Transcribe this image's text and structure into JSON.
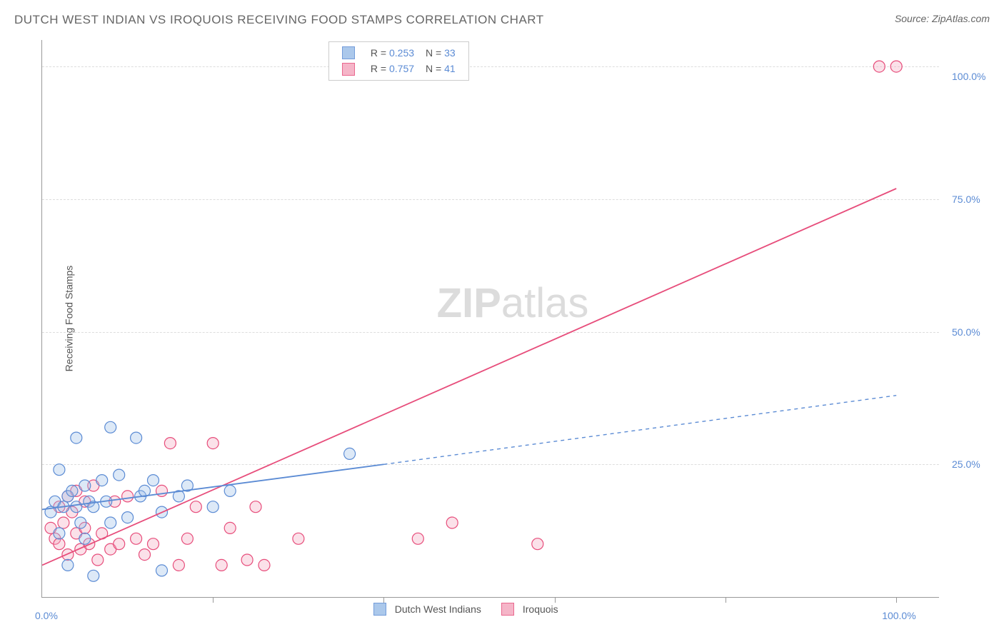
{
  "title": "DUTCH WEST INDIAN VS IROQUOIS RECEIVING FOOD STAMPS CORRELATION CHART",
  "source": "Source: ZipAtlas.com",
  "ylabel": "Receiving Food Stamps",
  "watermark_bold": "ZIP",
  "watermark_rest": "atlas",
  "chart": {
    "type": "scatter_correlation",
    "xlim": [
      0,
      105
    ],
    "ylim": [
      0,
      105
    ],
    "x_ticks": [
      0,
      20,
      40,
      60,
      80,
      100
    ],
    "y_ticks": [
      25,
      50,
      75,
      100
    ],
    "x_tick_labels": {
      "0": "0.0%",
      "100": "100.0%"
    },
    "y_tick_labels": {
      "25": "25.0%",
      "50": "50.0%",
      "75": "75.0%",
      "100": "100.0%"
    },
    "tick_color": "#5b8bd4",
    "grid_h_positions": [
      25,
      50,
      75,
      100
    ],
    "grid_v_positions": [
      20,
      40,
      60,
      80,
      100
    ],
    "grid_color": "#dddddd",
    "background_color": "#ffffff",
    "axis_color": "#999999",
    "marker_radius": 8,
    "marker_stroke_width": 1.2,
    "marker_fill_opacity": 0.35,
    "line_width": 1.8,
    "dash_pattern": "5,5"
  },
  "series": {
    "blue": {
      "label": "Dutch West Indians",
      "color_stroke": "#5b8bd4",
      "color_fill": "#9dbfe8",
      "R": "0.253",
      "N": "33",
      "trend": {
        "x1": 0,
        "y1": 16.5,
        "x2": 40,
        "y2": 25,
        "x2_ext": 100,
        "y2_ext": 38
      },
      "points": [
        [
          1,
          16
        ],
        [
          1.5,
          18
        ],
        [
          2,
          24
        ],
        [
          2,
          12
        ],
        [
          2.5,
          17
        ],
        [
          3,
          19
        ],
        [
          3,
          6
        ],
        [
          3.5,
          20
        ],
        [
          4,
          30
        ],
        [
          4,
          17
        ],
        [
          4.5,
          14
        ],
        [
          5,
          21
        ],
        [
          5,
          11
        ],
        [
          5.5,
          18
        ],
        [
          6,
          17
        ],
        [
          6,
          4
        ],
        [
          7,
          22
        ],
        [
          7.5,
          18
        ],
        [
          8,
          14
        ],
        [
          8,
          32
        ],
        [
          9,
          23
        ],
        [
          10,
          15
        ],
        [
          11,
          30
        ],
        [
          11.5,
          19
        ],
        [
          12,
          20
        ],
        [
          13,
          22
        ],
        [
          14,
          16
        ],
        [
          14,
          5
        ],
        [
          16,
          19
        ],
        [
          17,
          21
        ],
        [
          20,
          17
        ],
        [
          22,
          20
        ],
        [
          36,
          27
        ]
      ]
    },
    "pink": {
      "label": "Iroquois",
      "color_stroke": "#e74d7b",
      "color_fill": "#f4a9bf",
      "R": "0.757",
      "N": "41",
      "trend": {
        "x1": 0,
        "y1": 6,
        "x2": 100,
        "y2": 77
      },
      "points": [
        [
          1,
          13
        ],
        [
          1.5,
          11
        ],
        [
          2,
          10
        ],
        [
          2,
          17
        ],
        [
          2.5,
          14
        ],
        [
          3,
          19
        ],
        [
          3,
          8
        ],
        [
          3.5,
          16
        ],
        [
          4,
          12
        ],
        [
          4,
          20
        ],
        [
          4.5,
          9
        ],
        [
          5,
          18
        ],
        [
          5,
          13
        ],
        [
          5.5,
          10
        ],
        [
          6,
          21
        ],
        [
          6.5,
          7
        ],
        [
          7,
          12
        ],
        [
          8,
          9
        ],
        [
          8.5,
          18
        ],
        [
          9,
          10
        ],
        [
          10,
          19
        ],
        [
          11,
          11
        ],
        [
          12,
          8
        ],
        [
          13,
          10
        ],
        [
          14,
          20
        ],
        [
          15,
          29
        ],
        [
          16,
          6
        ],
        [
          17,
          11
        ],
        [
          18,
          17
        ],
        [
          20,
          29
        ],
        [
          21,
          6
        ],
        [
          22,
          13
        ],
        [
          24,
          7
        ],
        [
          25,
          17
        ],
        [
          26,
          6
        ],
        [
          30,
          11
        ],
        [
          44,
          11
        ],
        [
          48,
          14
        ],
        [
          58,
          10
        ],
        [
          98,
          100
        ],
        [
          100,
          100
        ]
      ]
    }
  },
  "legend_top": {
    "rows": [
      {
        "swatch": "blue",
        "r_val": "0.253",
        "n_val": "33"
      },
      {
        "swatch": "pink",
        "r_val": "0.757",
        "n_val": "41"
      }
    ],
    "r_label": "R =",
    "n_label": "N ="
  },
  "legend_bottom": {
    "items": [
      {
        "swatch": "blue",
        "label": "Dutch West Indians"
      },
      {
        "swatch": "pink",
        "label": "Iroquois"
      }
    ]
  }
}
